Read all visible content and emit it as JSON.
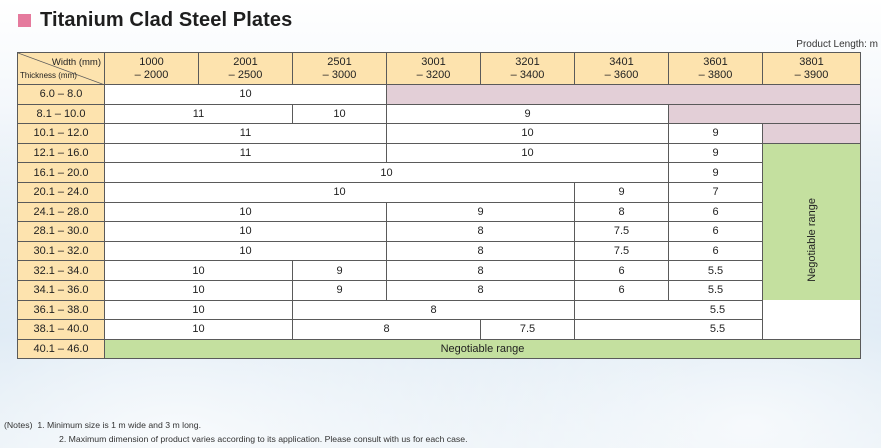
{
  "title": "Titanium Clad Steel Plates",
  "unit_note": "Product Length: m",
  "table": {
    "corner_width": "Width (mm)",
    "corner_thickness": "Thickness (mm)",
    "col_from": [
      "1000",
      "2001",
      "2501",
      "3001",
      "3201",
      "3401",
      "3601",
      "3801"
    ],
    "col_to": [
      "– 2000",
      "– 2500",
      "– 3000",
      "– 3200",
      "– 3400",
      "– 3600",
      "– 3800",
      "– 3900"
    ],
    "rows": [
      "6.0 – 8.0",
      "8.1 – 10.0",
      "10.1 – 12.0",
      "12.1 – 16.0",
      "16.1 – 20.0",
      "20.1 – 24.0",
      "24.1 – 28.0",
      "28.1 – 30.0",
      "30.1 – 32.0",
      "32.1 – 34.0",
      "34.1 – 36.0",
      "36.1 – 38.0",
      "38.1 – 40.0",
      "40.1 – 46.0"
    ],
    "negotiable": "Negotiable range",
    "cells": {
      "r1": [
        "10"
      ],
      "r2": [
        "11",
        "10",
        "9"
      ],
      "r3": [
        "11",
        "10",
        "9"
      ],
      "r4": [
        "11",
        "10",
        "9"
      ],
      "r5": [
        "10",
        "9"
      ],
      "r6": [
        "10",
        "9",
        "7"
      ],
      "r7": [
        "10",
        "9",
        "8",
        "6"
      ],
      "r8": [
        "10",
        "8",
        "7.5",
        "6"
      ],
      "r9": [
        "10",
        "8",
        "7.5",
        "6"
      ],
      "r10": [
        "10",
        "9",
        "8",
        "6",
        "5.5"
      ],
      "r11": [
        "10",
        "9",
        "8",
        "6",
        "5.5"
      ],
      "r12": [
        "10",
        "8",
        "5.5"
      ],
      "r13": [
        "10",
        "8",
        "7.5",
        "5.5"
      ]
    }
  },
  "notes": {
    "label": "(Notes)",
    "line1": "1. Minimum size is 1 m wide and 3 m long.",
    "line2": "2. Maximum dimension of product varies according to its application. Please consult with us for each case."
  }
}
